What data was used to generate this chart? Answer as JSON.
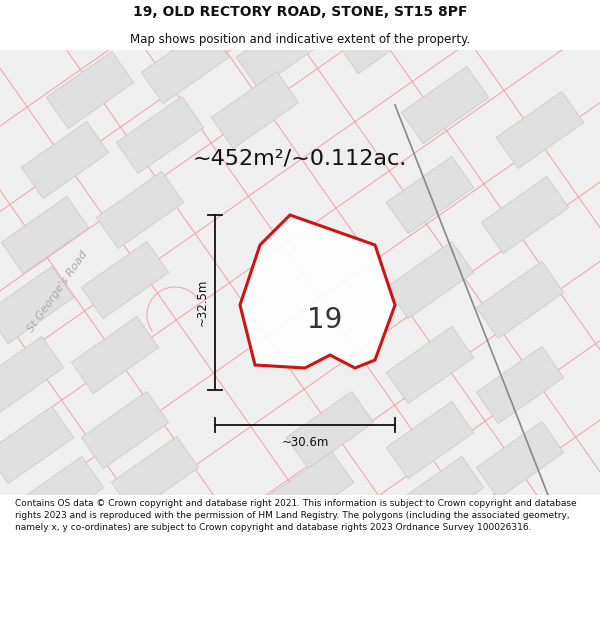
{
  "title": "19, OLD RECTORY ROAD, STONE, ST15 8PF",
  "subtitle": "Map shows position and indicative extent of the property.",
  "area_label": "~452m²/~0.112ac.",
  "property_number": "19",
  "width_label": "~30.6m",
  "height_label": "~32.5m",
  "road_label": "St George's Road",
  "footer": "Contains OS data © Crown copyright and database right 2021. This information is subject to Crown copyright and database rights 2023 and is reproduced with the permission of HM Land Registry. The polygons (including the associated geometry, namely x, y co-ordinates) are subject to Crown copyright and database rights 2023 Ordnance Survey 100026316.",
  "title_fontsize": 10,
  "subtitle_fontsize": 8.5,
  "area_fontsize": 16,
  "property_num_fontsize": 20,
  "dim_fontsize": 8.5,
  "road_label_fontsize": 8,
  "footer_fontsize": 6.5,
  "map_bg": "#f0efef",
  "block_fill": "#e0e0e0",
  "block_edge": "#cccccc",
  "road_pink": "#f0aaaa",
  "property_red": "#cc0000",
  "dim_color": "#111111",
  "dark_road_color": "#888888",
  "road_label_color": "#aaaaaa",
  "title_color": "#111111",
  "footer_color": "#111111"
}
